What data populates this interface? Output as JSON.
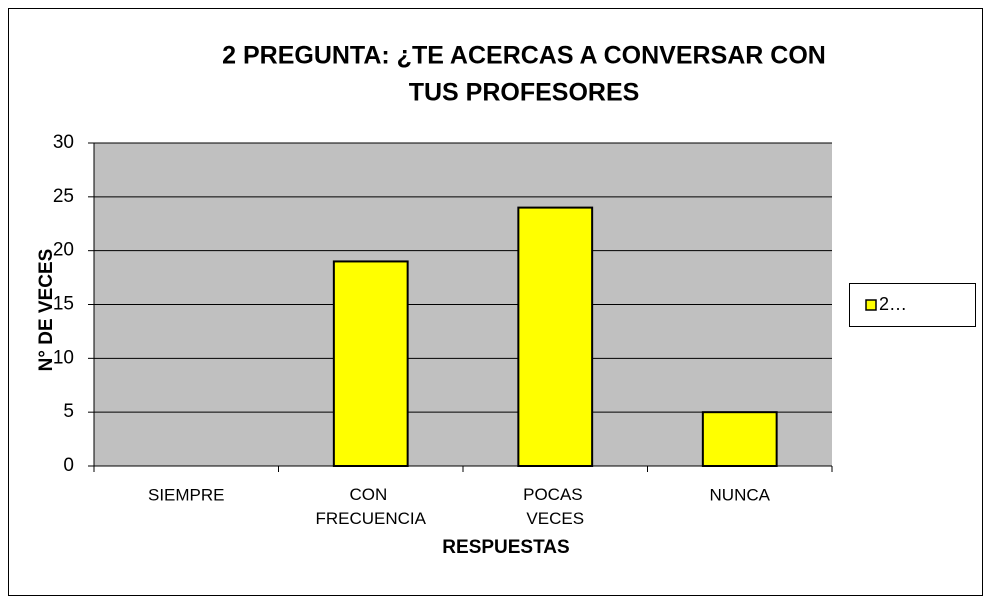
{
  "chart_data": {
    "type": "bar",
    "title": [
      "2 PREGUNTA: ¿TE ACERCAS A CONVERSAR CON",
      "TUS PROFESORES"
    ],
    "categories": [
      "SIEMPRE",
      "CON FRECUENCIA",
      "POCAS VECES",
      "NUNCA"
    ],
    "series": [
      {
        "name": "2…",
        "color": "#ffff00",
        "values": [
          0,
          19,
          24,
          5
        ]
      }
    ],
    "xlabel": "RESPUESTAS",
    "ylabel": "N° DE VECES",
    "ylim": [
      0,
      30
    ],
    "yticks": [
      0,
      5,
      10,
      15,
      20,
      25,
      30
    ],
    "grid": true,
    "legend": "right"
  }
}
